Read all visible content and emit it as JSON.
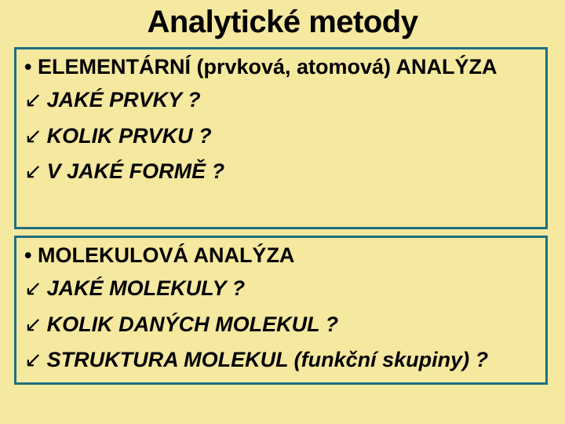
{
  "slide": {
    "background_color": "#f5e89f",
    "title": {
      "text": "Analytické metody",
      "fontsize": 40,
      "color": "#000000",
      "weight": 900
    },
    "box_border_color": "#1c6f82",
    "box_border_width": 3,
    "heading_fontsize": 27,
    "item_fontsize": 27,
    "arrow_glyph": "↙",
    "section1": {
      "heading": "• ELEMENTÁRNÍ (prvková, atomová) ANALÝZA",
      "items": [
        "JAKÉ PRVKY ?",
        "KOLIK PRVKU ?",
        "V JAKÉ FORMĚ ?"
      ]
    },
    "section2": {
      "heading": "• MOLEKULOVÁ ANALÝZA",
      "items": [
        "JAKÉ MOLEKULY ?",
        "KOLIK DANÝCH MOLEKUL ?",
        "STRUKTURA MOLEKUL (funkční skupiny) ?"
      ]
    }
  }
}
